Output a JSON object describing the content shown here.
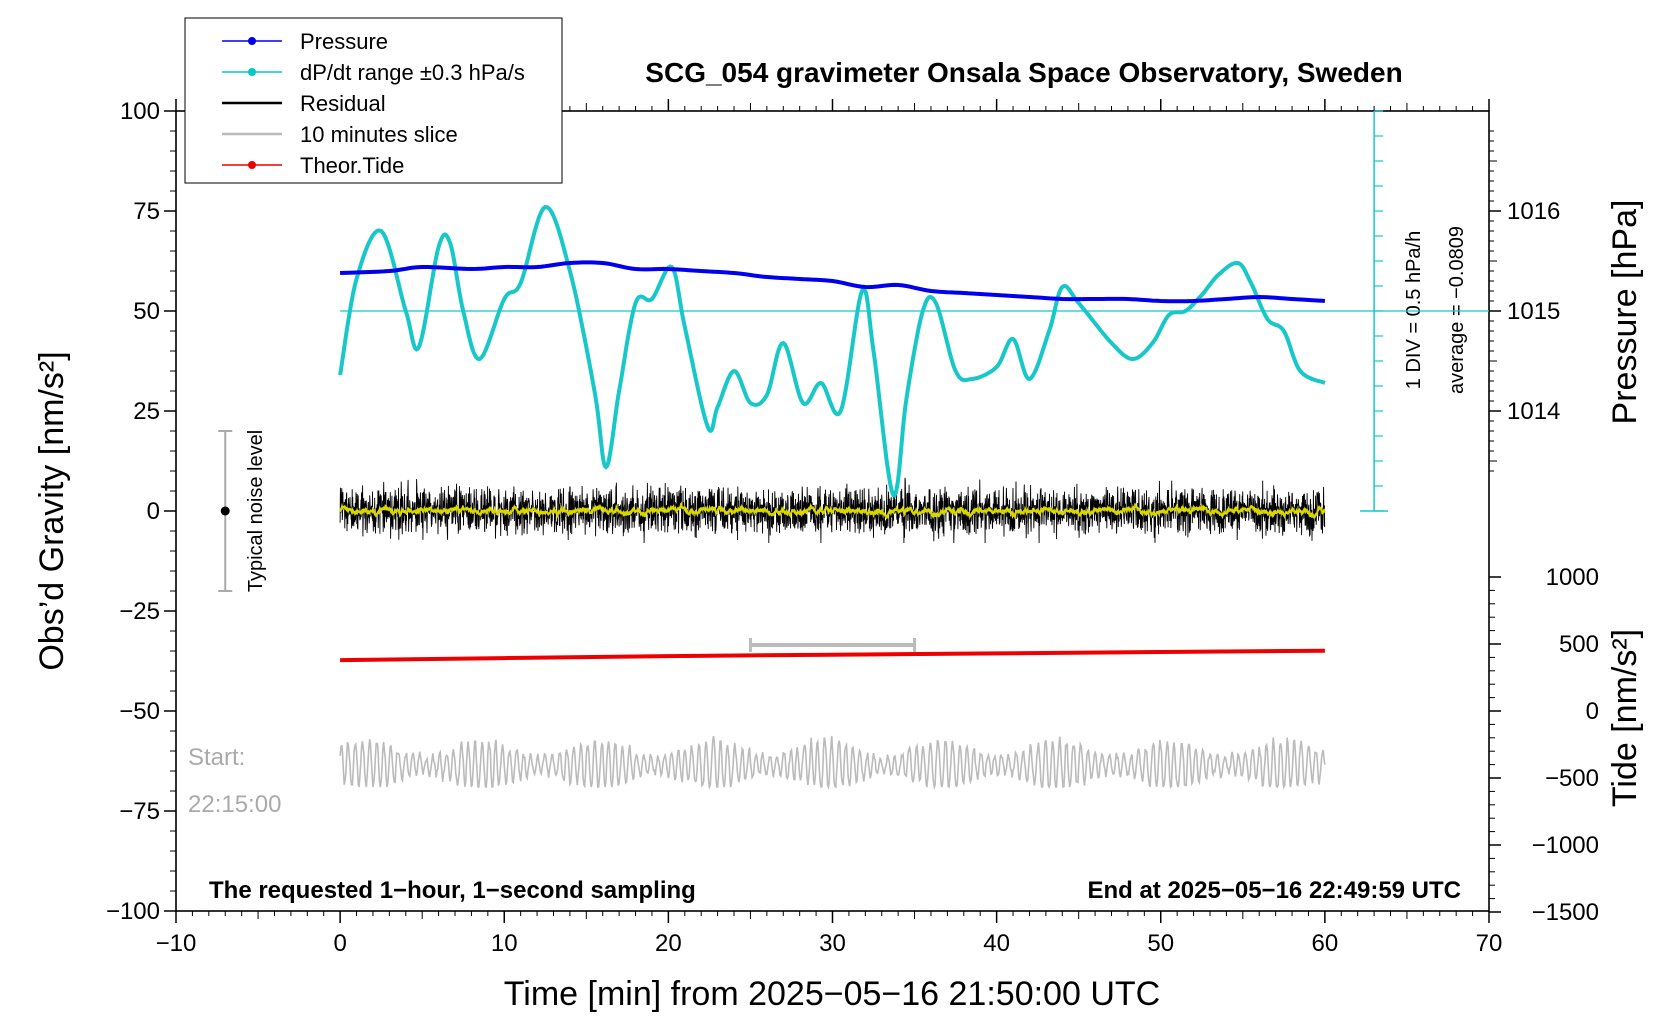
{
  "chart_data": {
    "type": "line",
    "title": "SCG_054 gravimeter Onsala Space Observatory, Sweden",
    "xlabel": "Time [min] from 2025−05−16 21:50:00 UTC",
    "ylabel_left": "Obs’d Gravity [nm/s²]",
    "ylabel_pressure": "Pressure [hPa]",
    "ylabel_tide": "Tide [nm/s²]",
    "xlim": [
      -10,
      70
    ],
    "ylim": [
      -100,
      100
    ],
    "x_ticks": [
      -10,
      0,
      10,
      20,
      30,
      40,
      50,
      60,
      70
    ],
    "x_tick_labels": [
      "−10",
      "0",
      "10",
      "20",
      "30",
      "40",
      "50",
      "60",
      "70"
    ],
    "y_ticks": [
      100,
      75,
      50,
      25,
      0,
      -25,
      -50,
      -75,
      -100
    ],
    "y_tick_labels": [
      "100",
      "75",
      "50",
      "25",
      "0",
      "−25",
      "−50",
      "−75",
      "−100"
    ],
    "pressure_ticks": [
      1016,
      1015,
      1014
    ],
    "pressure_tick_labels": [
      "1016",
      "1015",
      "1014"
    ],
    "tide_ticks": [
      1000,
      500,
      0,
      -500,
      -1000,
      -1500
    ],
    "tide_tick_labels": [
      "1000",
      "500",
      "0",
      "−500",
      "−1000",
      "−1500"
    ],
    "pressure_axis_annotation": "1 DIV = 0.5 hPa/h",
    "average_annotation": "average = −0.0809",
    "noise_label": "Typical noise level",
    "start_label": "Start:",
    "start_time": "22:15:00",
    "footer_left": "The requested 1−hour, 1−second sampling",
    "footer_right": "End at 2025−05−16 22:49:59 UTC",
    "legend": [
      {
        "label": "Pressure",
        "color": "#0000ee",
        "marker": true
      },
      {
        "label": "dP/dt range ±0.3 hPa/s",
        "color": "#00c8c8",
        "marker": true
      },
      {
        "label": "Residual",
        "color": "#000000",
        "marker": false
      },
      {
        "label": "10 minutes slice",
        "color": "#bbbbbb",
        "marker": false
      },
      {
        "label": "Theor.Tide",
        "color": "#ee0000",
        "marker": true
      }
    ],
    "series": [
      {
        "name": "Pressure",
        "color": "#0000ee",
        "units": "left-axis equivalent (nm/s²)",
        "x": [
          0,
          3,
          5,
          8,
          10,
          12,
          14,
          16,
          18,
          20,
          22,
          24,
          26,
          28,
          30,
          32,
          34,
          36,
          38,
          40,
          42,
          44,
          46,
          48,
          50,
          52,
          54,
          56,
          58,
          60
        ],
        "y": [
          59.5,
          60,
          61,
          60.5,
          61,
          61,
          62,
          62,
          60.5,
          60.5,
          60,
          59.5,
          58.5,
          58,
          57.5,
          56,
          56.5,
          55,
          54.5,
          54,
          53.5,
          53,
          53,
          53,
          52.5,
          52.5,
          53,
          53.5,
          53,
          52.5
        ]
      },
      {
        "name": "dP/dt",
        "color": "#18c8c8",
        "units": "left-axis equivalent (nm/s²)",
        "x": [
          0,
          1,
          2.5,
          4,
          4.8,
          6,
          6.7,
          7.5,
          8.5,
          10,
          11,
          12.5,
          14,
          15.5,
          16.2,
          17,
          18,
          19,
          20.2,
          21,
          22.4,
          23,
          24,
          25,
          26,
          27,
          28.2,
          29.3,
          30.5,
          31.8,
          32.5,
          33.7,
          34.5,
          35.5,
          36.3,
          37.5,
          38.5,
          40,
          41,
          42,
          43.2,
          44,
          45,
          47,
          48.3,
          49.5,
          50.5,
          51.5,
          52.5,
          53.5,
          54.7,
          55.5,
          56.5,
          57.5,
          58.5,
          60
        ],
        "y": [
          34,
          58,
          70,
          50,
          41,
          66,
          67,
          50,
          38,
          53,
          57,
          76,
          60,
          30,
          11,
          30,
          52,
          53,
          61,
          46,
          21,
          26,
          35,
          27,
          29,
          42,
          27,
          32,
          25,
          55,
          40,
          4,
          28,
          50,
          52,
          35,
          33,
          36,
          43,
          33,
          45,
          56,
          52,
          42,
          38,
          42,
          49,
          50,
          54,
          59,
          62,
          57,
          48,
          45,
          35,
          32
        ]
      },
      {
        "name": "Residual",
        "color": "#000000",
        "units": "nm/s²",
        "x_range": [
          0,
          60
        ],
        "y_center": 0,
        "y_range": [
          -8,
          10
        ],
        "smoothed_overlay_color": "#d8d800"
      },
      {
        "name": "10 minutes slice",
        "color": "#bbbbbb",
        "units": "left-axis equivalent (nm/s²)",
        "x_range": [
          0,
          60
        ],
        "y_center": -63.5,
        "y_range": [
          -69,
          -54
        ]
      },
      {
        "name": "Theor.Tide",
        "color": "#ee0000",
        "units": "nm/s²",
        "x": [
          0,
          10,
          20,
          30,
          40,
          50,
          60
        ],
        "y": [
          380,
          395,
          410,
          420,
          430,
          440,
          450
        ]
      }
    ],
    "slice_marker": {
      "x": [
        25,
        35
      ],
      "y": -33.5
    },
    "noise_bar": {
      "x": -7,
      "y": [
        -20,
        20
      ],
      "center": 0
    },
    "pressure_reference_line": 50,
    "grid": false,
    "legend_position": "top-left"
  }
}
